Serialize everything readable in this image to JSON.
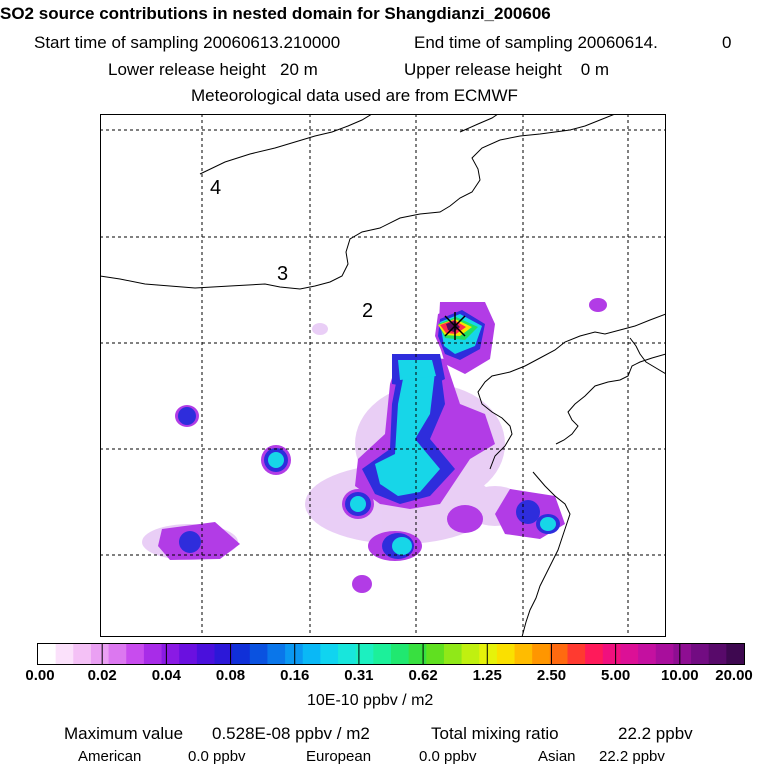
{
  "header": {
    "title": "SO2 source contributions in nested domain for Shangdianzi_200606",
    "start_label": "Start time of sampling 20060613.210000",
    "end_label": "End time of sampling 20060614.",
    "end_suffix": "0",
    "lower_release": "Lower release height   20 m",
    "upper_release": "Upper release height    0 m",
    "met_data": "Meteorological data used are from ECMWF"
  },
  "map": {
    "region_labels": [
      "4",
      "3",
      "2"
    ],
    "receptor_marker": "x"
  },
  "colorbar": {
    "tick_labels": [
      "0.00",
      "0.02",
      "0.04",
      "0.08",
      "0.16",
      "0.31",
      "0.62",
      "1.25",
      "2.50",
      "5.00",
      "10.00",
      "20.00"
    ],
    "colors": [
      "#ffffff",
      "#fbe1fb",
      "#f4c1f6",
      "#eaa0f3",
      "#dc78f0",
      "#c84cee",
      "#a82ce8",
      "#8a1ae4",
      "#6a10e0",
      "#4a10dc",
      "#2c18d8",
      "#1030d8",
      "#0a52e0",
      "#0a76ea",
      "#0a98f2",
      "#0ab8f6",
      "#10d4f0",
      "#18e6dc",
      "#1cf0c0",
      "#1cf09a",
      "#20e870",
      "#38e040",
      "#60e020",
      "#90e818",
      "#c0f010",
      "#e6f20a",
      "#fae000",
      "#ffbc00",
      "#ff9600",
      "#ff6a10",
      "#ff3a30",
      "#ff1a5a",
      "#f0107e",
      "#dc1096",
      "#c410a0",
      "#a80e9c",
      "#8e0e92",
      "#720c82",
      "#580a6a",
      "#3e0850"
    ],
    "units": "10E-10 ppbv / m2"
  },
  "summary": {
    "max_label": "Maximum value",
    "max_value": "0.528E-08 ppbv / m2",
    "total_label": "Total mixing ratio",
    "total_value": "22.2 ppbv",
    "american_label": "American",
    "american_value": "0.0 ppbv",
    "european_label": "European",
    "european_value": "0.0 ppbv",
    "asian_label": "Asian",
    "asian_value": "22.2 ppbv"
  }
}
